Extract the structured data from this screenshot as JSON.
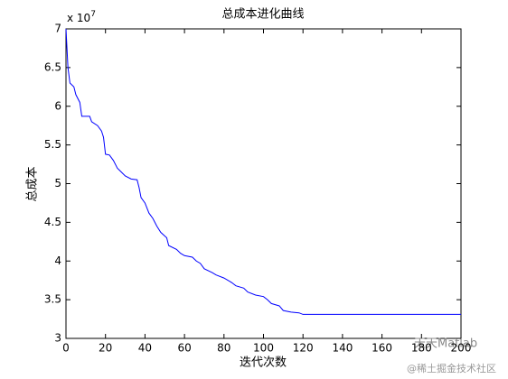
{
  "chart_data": {
    "type": "line",
    "title": "总成本进化曲线",
    "x_label": "迭代次数",
    "y_label": "总成本",
    "y_multiplier": {
      "base": "x 10",
      "exponent": "7"
    },
    "watermark": [
      "天天Matlab",
      "@稀土掘金技术社区"
    ],
    "x": [
      0,
      1,
      2,
      4,
      5,
      7,
      8,
      12,
      13,
      16,
      18,
      19,
      20,
      22,
      24,
      26,
      28,
      30,
      33,
      36,
      37,
      38,
      40,
      42,
      44,
      46,
      48,
      51,
      52,
      56,
      58,
      60,
      64,
      66,
      68,
      70,
      74,
      76,
      80,
      84,
      86,
      90,
      92,
      96,
      100,
      102,
      104,
      108,
      110,
      114,
      118,
      120,
      200
    ],
    "series": [
      {
        "name": "总成本",
        "color": "#0000ff",
        "values": [
          7.0,
          6.5,
          6.3,
          6.25,
          6.15,
          6.05,
          5.87,
          5.87,
          5.8,
          5.75,
          5.68,
          5.6,
          5.38,
          5.37,
          5.3,
          5.2,
          5.15,
          5.1,
          5.06,
          5.05,
          4.95,
          4.82,
          4.75,
          4.62,
          4.55,
          4.45,
          4.37,
          4.3,
          4.2,
          4.15,
          4.1,
          4.07,
          4.05,
          4.0,
          3.97,
          3.9,
          3.85,
          3.82,
          3.78,
          3.72,
          3.68,
          3.65,
          3.6,
          3.56,
          3.54,
          3.5,
          3.45,
          3.42,
          3.36,
          3.34,
          3.33,
          3.31,
          3.31
        ]
      }
    ],
    "xlim": [
      0,
      200
    ],
    "xticks": [
      0,
      20,
      40,
      60,
      80,
      100,
      120,
      140,
      160,
      180,
      200
    ],
    "ylim": [
      3,
      7
    ],
    "yticks": [
      3,
      3.5,
      4,
      4.5,
      5,
      5.5,
      6,
      6.5,
      7
    ],
    "grid": false
  }
}
